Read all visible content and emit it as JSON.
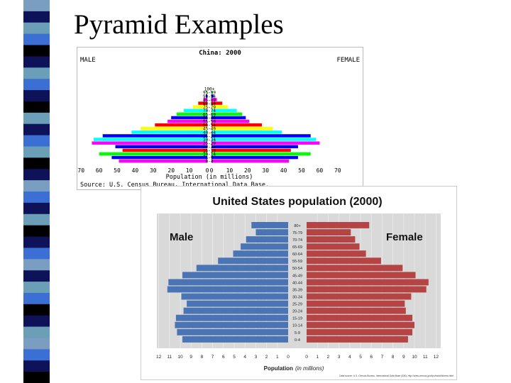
{
  "slide": {
    "title": "Pyramid Examples",
    "stripe_colors": [
      "#0d1259",
      "#3b6fd4",
      "#6b9fb8",
      "#000000",
      "#7a9ec2"
    ]
  },
  "chart_data": [
    {
      "type": "bar",
      "orientation": "horizontal-pyramid",
      "title": "China: 2000",
      "left_label": "MALE",
      "right_label": "FEMALE",
      "xlabel": "Population (in millions)",
      "source": "Source: U.S. Census Bureau, International Data Base.",
      "xlim": [
        0,
        70
      ],
      "x_ticks": [
        "70",
        "60",
        "50",
        "40",
        "30",
        "20",
        "10",
        "0",
        "0",
        "10",
        "20",
        "30",
        "40",
        "50",
        "60",
        "70"
      ],
      "categories": [
        "0-4",
        "5-9",
        "10-14",
        "15-19",
        "20-24",
        "25-29",
        "30-34",
        "35-39",
        "40-44",
        "45-49",
        "50-54",
        "55-59",
        "60-64",
        "65-69",
        "70-74",
        "75-79",
        "80-84",
        "85-89",
        "90-94",
        "95-99",
        "100+"
      ],
      "series": [
        {
          "values": [
            49,
            53,
            60,
            47,
            51,
            64,
            63,
            58,
            42,
            37,
            29,
            22,
            20,
            17,
            13,
            8,
            5,
            2,
            0.8,
            0.3,
            0.1
          ]
        },
        {
          "values": [
            43,
            48,
            55,
            44,
            48,
            60,
            58,
            55,
            39,
            34,
            28,
            21,
            19,
            17,
            14,
            9,
            6,
            3,
            1.2,
            0.5,
            0.2
          ]
        }
      ],
      "bar_colors": [
        "#ff00ff",
        "#0000ff",
        "#00ff00",
        "#ff0000",
        "#0000ff",
        "#ff00ff",
        "#00ffff",
        "#0000ff",
        "#00ffff",
        "#ffff00",
        "#ff0000",
        "#ff00ff",
        "#0000ff",
        "#00ff00",
        "#00ffff",
        "#ffff00",
        "#ff0000",
        "#ff00ff",
        "#0000ff",
        "#00ff00",
        "#ffff00"
      ]
    },
    {
      "type": "bar",
      "orientation": "horizontal-pyramid",
      "title": "United States population (2000)",
      "left_label": "Male",
      "right_label": "Female",
      "xlabel_main": "Population",
      "xlabel_unit": "(in millions)",
      "source": "Data source: U.S. Census Bureau, International Data Base (IDB), http://www.census.gov/ipc/www/idbnew.html",
      "xlim": [
        0,
        12
      ],
      "x_ticks_left": [
        "12",
        "11",
        "10",
        "9",
        "8",
        "7",
        "6",
        "5",
        "4",
        "3",
        "2",
        "1",
        "0"
      ],
      "x_ticks_right": [
        "0",
        "1",
        "2",
        "3",
        "4",
        "5",
        "6",
        "7",
        "8",
        "9",
        "10",
        "11",
        "12"
      ],
      "categories": [
        "0-4",
        "5-9",
        "10-14",
        "15-19",
        "20-24",
        "25-29",
        "30-34",
        "35-39",
        "40-44",
        "45-49",
        "50-54",
        "55-59",
        "60-64",
        "65-69",
        "70-74",
        "75-79",
        "80+"
      ],
      "series": [
        {
          "name": "Male",
          "color": "#4a74b4",
          "values": [
            9.8,
            10.3,
            10.5,
            10.4,
            9.7,
            9.4,
            9.9,
            11.2,
            11.1,
            9.8,
            8.5,
            6.5,
            5.1,
            4.4,
            3.9,
            3.0,
            3.4
          ]
        },
        {
          "name": "Female",
          "color": "#b54444",
          "values": [
            9.4,
            9.8,
            10.0,
            9.8,
            9.2,
            9.1,
            9.7,
            11.1,
            11.3,
            10.1,
            8.9,
            6.9,
            5.5,
            4.9,
            4.5,
            4.1,
            5.8
          ]
        }
      ]
    }
  ]
}
